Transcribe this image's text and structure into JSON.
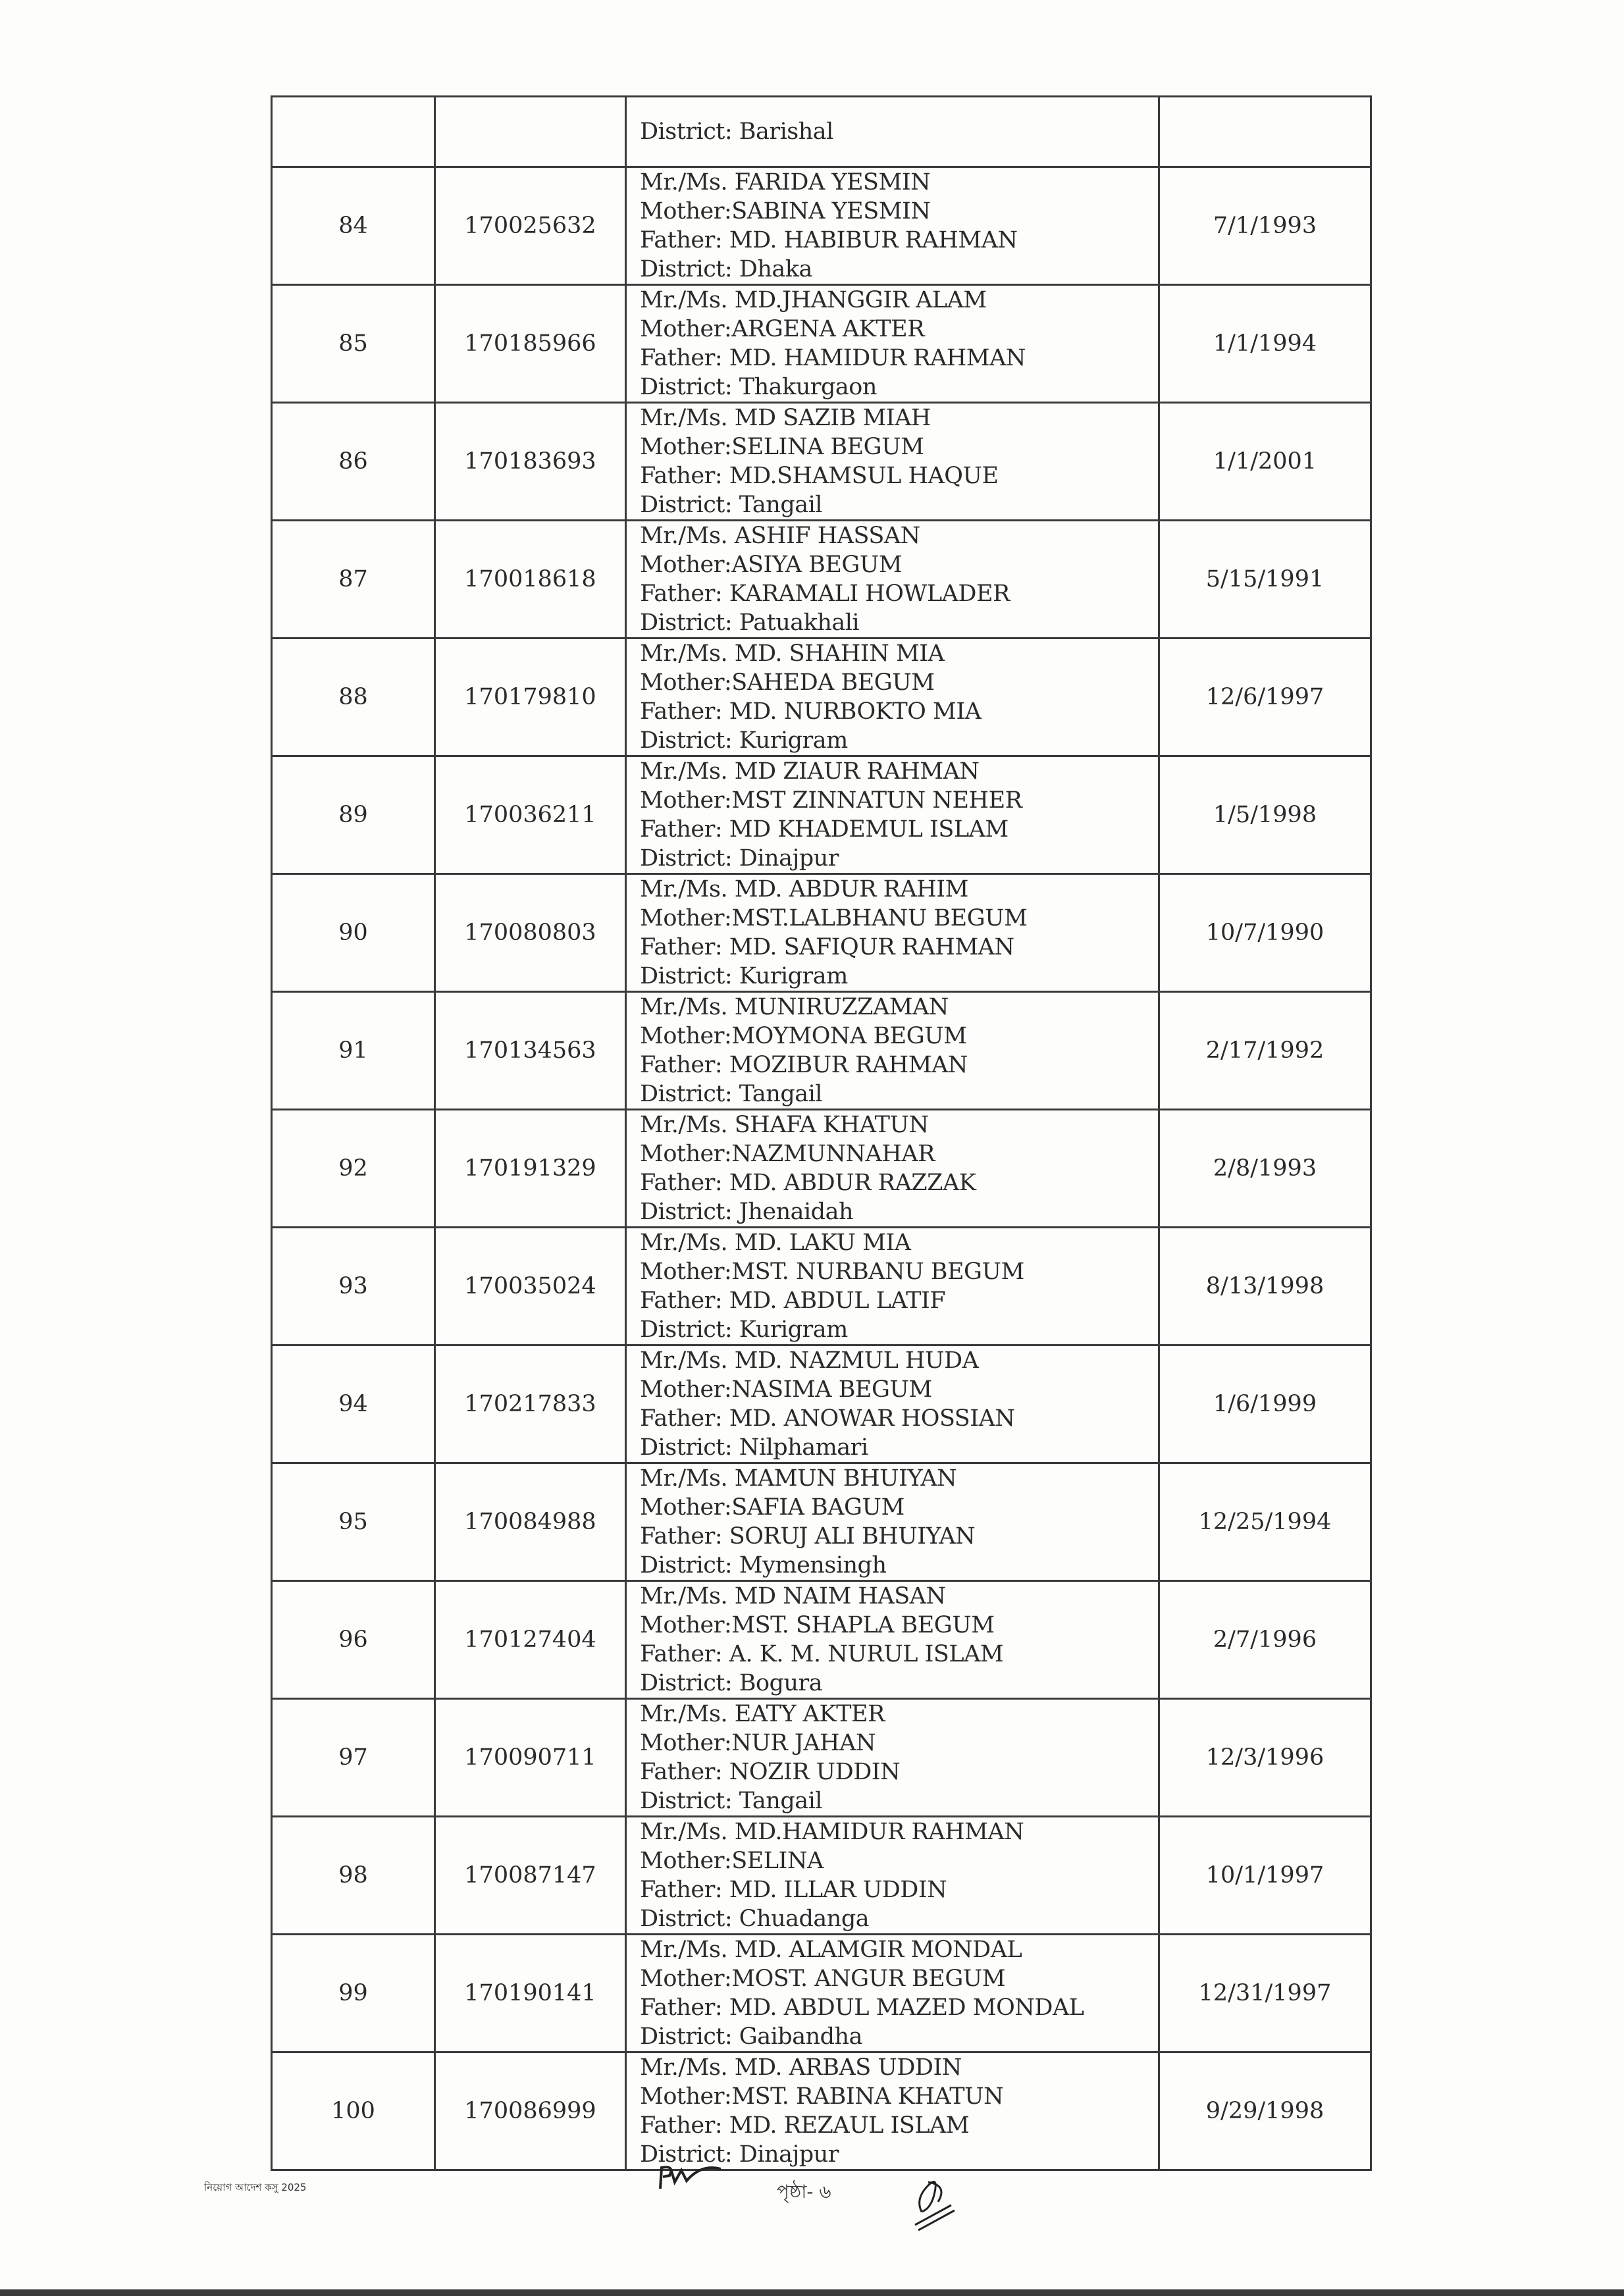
{
  "carryover": {
    "details": [
      "District: Barishal"
    ]
  },
  "rows": [
    {
      "sl": "84",
      "roll": "170025632",
      "details": [
        "Mr./Ms. FARIDA YESMIN",
        "Mother:SABINA YESMIN",
        "Father: MD. HABIBUR RAHMAN",
        "District: Dhaka"
      ],
      "dob": "7/1/1993"
    },
    {
      "sl": "85",
      "roll": "170185966",
      "details": [
        "Mr./Ms. MD.JHANGGIR ALAM",
        "Mother:ARGENA AKTER",
        "Father: MD. HAMIDUR RAHMAN",
        "District: Thakurgaon"
      ],
      "dob": "1/1/1994"
    },
    {
      "sl": "86",
      "roll": "170183693",
      "details": [
        "Mr./Ms. MD SAZIB MIAH",
        "Mother:SELINA BEGUM",
        "Father: MD.SHAMSUL HAQUE",
        "District: Tangail"
      ],
      "dob": "1/1/2001"
    },
    {
      "sl": "87",
      "roll": "170018618",
      "details": [
        "Mr./Ms. ASHIF HASSAN",
        "Mother:ASIYA BEGUM",
        "Father: KARAMALI HOWLADER",
        "District: Patuakhali"
      ],
      "dob": "5/15/1991"
    },
    {
      "sl": "88",
      "roll": "170179810",
      "details": [
        "Mr./Ms. MD. SHAHIN MIA",
        "Mother:SAHEDA BEGUM",
        "Father: MD. NURBOKTO MIA",
        "District: Kurigram"
      ],
      "dob": "12/6/1997"
    },
    {
      "sl": "89",
      "roll": "170036211",
      "details": [
        "Mr./Ms. MD ZIAUR RAHMAN",
        "Mother:MST ZINNATUN NEHER",
        "Father: MD KHADEMUL ISLAM",
        "District: Dinajpur"
      ],
      "dob": "1/5/1998"
    },
    {
      "sl": "90",
      "roll": "170080803",
      "details": [
        "Mr./Ms. MD. ABDUR RAHIM",
        "Mother:MST.LALBHANU BEGUM",
        "Father: MD. SAFIQUR  RAHMAN",
        "District: Kurigram"
      ],
      "dob": "10/7/1990"
    },
    {
      "sl": "91",
      "roll": "170134563",
      "details": [
        "Mr./Ms. MUNIRUZZAMAN",
        "Mother:MOYMONA BEGUM",
        "Father: MOZIBUR RAHMAN",
        "District: Tangail"
      ],
      "dob": "2/17/1992"
    },
    {
      "sl": "92",
      "roll": "170191329",
      "details": [
        "Mr./Ms. SHAFA KHATUN",
        "Mother:NAZMUNNAHAR",
        "Father: MD. ABDUR RAZZAK",
        "District: Jhenaidah"
      ],
      "dob": "2/8/1993"
    },
    {
      "sl": "93",
      "roll": "170035024",
      "details": [
        "Mr./Ms. MD. LAKU MIA",
        "Mother:MST. NURBANU BEGUM",
        "Father: MD. ABDUL LATIF",
        "District: Kurigram"
      ],
      "dob": "8/13/1998"
    },
    {
      "sl": "94",
      "roll": "170217833",
      "details": [
        "Mr./Ms. MD. NAZMUL HUDA",
        "Mother:NASIMA BEGUM",
        "Father: MD. ANOWAR HOSSIAN",
        "District: Nilphamari"
      ],
      "dob": "1/6/1999"
    },
    {
      "sl": "95",
      "roll": "170084988",
      "details": [
        "Mr./Ms. MAMUN BHUIYAN",
        "Mother:SAFIA BAGUM",
        "Father: SORUJ ALI BHUIYAN",
        "District: Mymensingh"
      ],
      "dob": "12/25/1994"
    },
    {
      "sl": "96",
      "roll": "170127404",
      "details": [
        "Mr./Ms. MD NAIM HASAN",
        "Mother:MST. SHAPLA BEGUM",
        "Father: A. K. M. NURUL ISLAM",
        "District: Bogura"
      ],
      "dob": "2/7/1996"
    },
    {
      "sl": "97",
      "roll": "170090711",
      "details": [
        "Mr./Ms. EATY AKTER",
        "Mother:NUR JAHAN",
        "Father: NOZIR UDDIN",
        "District: Tangail"
      ],
      "dob": "12/3/1996"
    },
    {
      "sl": "98",
      "roll": "170087147",
      "details": [
        "Mr./Ms. MD.HAMIDUR RAHMAN",
        "Mother:SELINA",
        "Father: MD. ILLAR UDDIN",
        "District: Chuadanga"
      ],
      "dob": "10/1/1997"
    },
    {
      "sl": "99",
      "roll": "170190141",
      "details": [
        "Mr./Ms. MD. ALAMGIR MONDAL",
        "Mother:MOST. ANGUR BEGUM",
        "Father: MD. ABDUL MAZED MONDAL",
        "District: Gaibandha"
      ],
      "dob": "12/31/1997"
    },
    {
      "sl": "100",
      "roll": "170086999",
      "details": [
        "Mr./Ms. MD. ARBAS UDDIN",
        "Mother:MST. RABINA KHATUN",
        "Father: MD. REZAUL ISLAM",
        "District: Dinajpur"
      ],
      "dob": "9/29/1998"
    }
  ],
  "footer": {
    "left_note": "নিয়োগ আদেশ কসু 2025",
    "page_label": "পৃষ্ঠা- ৬"
  }
}
